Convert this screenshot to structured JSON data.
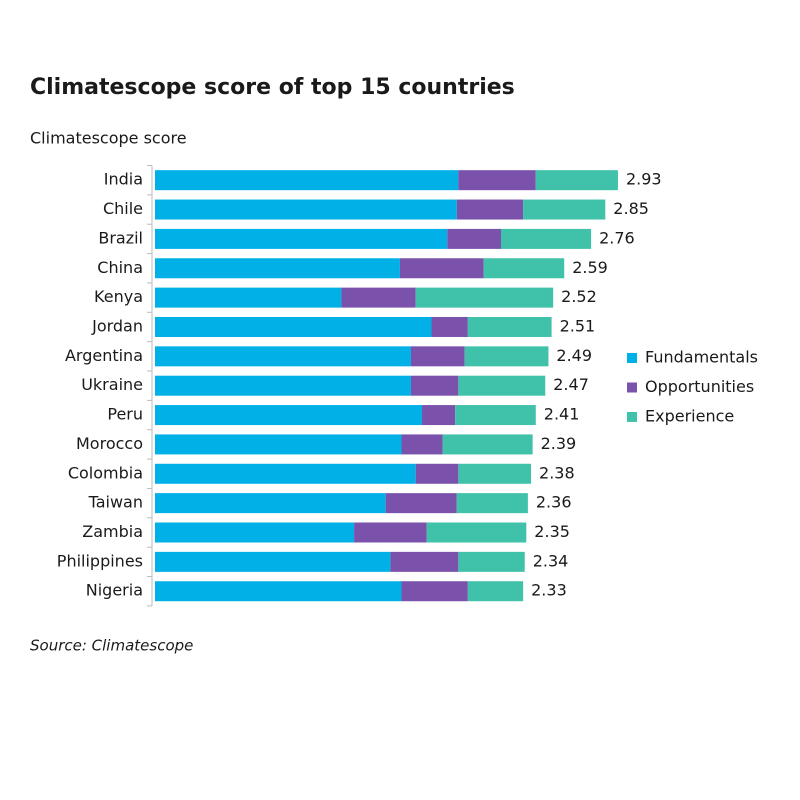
{
  "chart_data": {
    "type": "stacked-bar-horizontal",
    "title": "Climatescope score of top 15 countries",
    "subtitle": "Climatescope score",
    "source": "Source: Climatescope",
    "categories": [
      "India",
      "Chile",
      "Brazil",
      "China",
      "Kenya",
      "Jordan",
      "Argentina",
      "Ukraine",
      "Peru",
      "Morocco",
      "Colombia",
      "Taiwan",
      "Zambia",
      "Philippines",
      "Nigeria"
    ],
    "series": [
      {
        "name": "Fundamentals",
        "color": "#00b0e6",
        "values": [
          1.92,
          1.91,
          1.85,
          1.55,
          1.18,
          1.75,
          1.62,
          1.62,
          1.69,
          1.56,
          1.65,
          1.46,
          1.26,
          1.49,
          1.56
        ]
      },
      {
        "name": "Opportunities",
        "color": "#7b52ab",
        "values": [
          0.49,
          0.42,
          0.34,
          0.53,
          0.47,
          0.23,
          0.34,
          0.3,
          0.21,
          0.26,
          0.27,
          0.45,
          0.46,
          0.43,
          0.42
        ]
      },
      {
        "name": "Experience",
        "color": "#3fc1aa",
        "values": [
          0.52,
          0.52,
          0.57,
          0.51,
          0.87,
          0.53,
          0.53,
          0.55,
          0.51,
          0.57,
          0.46,
          0.45,
          0.63,
          0.42,
          0.35
        ]
      }
    ],
    "totals": [
      2.93,
      2.85,
      2.76,
      2.59,
      2.52,
      2.51,
      2.49,
      2.47,
      2.41,
      2.39,
      2.38,
      2.36,
      2.35,
      2.34,
      2.33
    ],
    "legend": "right"
  }
}
